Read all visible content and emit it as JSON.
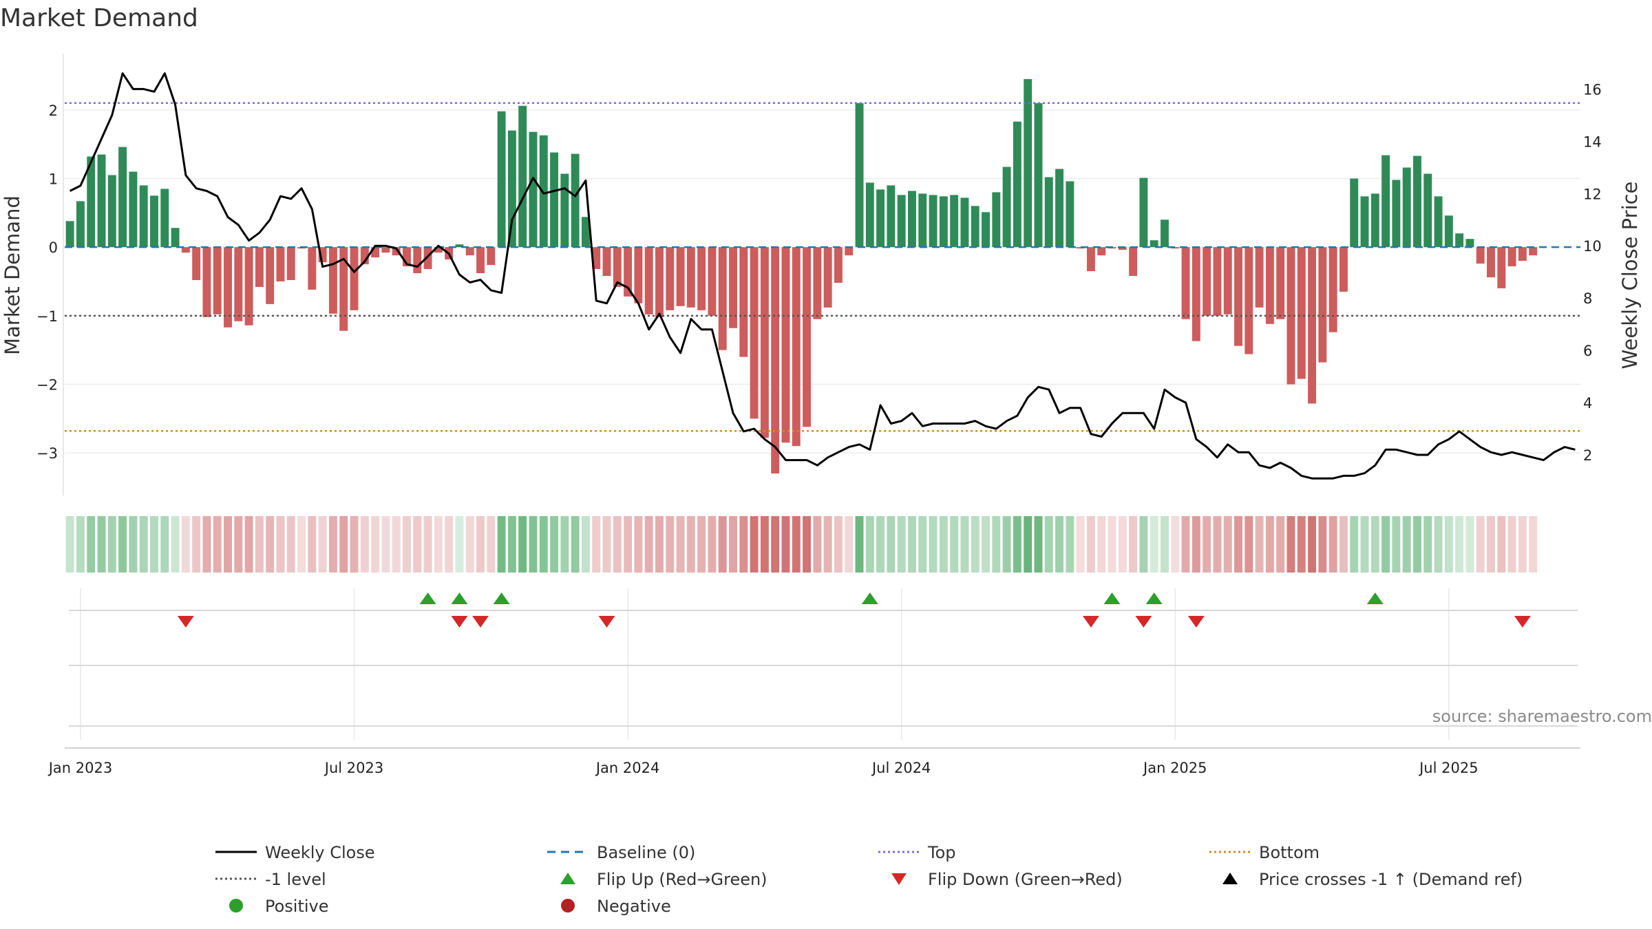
{
  "chart_data": {
    "type": "bar",
    "title": "Market Demand",
    "ylabel": "Market Demand",
    "y2label": "Weekly Close Price",
    "ylim": [
      -3.6,
      2.8
    ],
    "y2lim": [
      0.5,
      17.3
    ],
    "yticks": [
      2,
      1,
      0,
      -1,
      -2,
      -3
    ],
    "yticklabels": [
      "2",
      "1",
      "0",
      "−1",
      "−2",
      "−3"
    ],
    "y2ticks": [
      16,
      14,
      12,
      10,
      8,
      6,
      4,
      2
    ],
    "y2ticklabels": [
      "16",
      "14",
      "12",
      "10",
      "8",
      "6",
      "4",
      "2"
    ],
    "xticks": [
      {
        "week": 1,
        "label": "Jan 2023"
      },
      {
        "week": 27,
        "label": "Jul 2023"
      },
      {
        "week": 53,
        "label": "Jan 2024"
      },
      {
        "week": 79,
        "label": "Jul 2024"
      },
      {
        "week": 105,
        "label": "Jan 2025"
      },
      {
        "week": 131,
        "label": "Jul 2025"
      }
    ],
    "weeks_range": [
      -0.5,
      143.5
    ],
    "reference_lines": {
      "top": 2.1,
      "bottom": -2.68,
      "minus_one": -1,
      "baseline": 0
    },
    "demand": [
      0.38,
      0.67,
      1.32,
      1.35,
      1.05,
      1.46,
      1.1,
      0.9,
      0.75,
      0.85,
      0.28,
      -0.08,
      -0.48,
      -1.02,
      -0.98,
      -1.17,
      -1.08,
      -1.14,
      -0.58,
      -0.83,
      -0.5,
      -0.48,
      -0.02,
      -0.62,
      -0.22,
      -0.97,
      -1.22,
      -0.92,
      -0.25,
      -0.15,
      -0.08,
      -0.12,
      -0.28,
      -0.38,
      -0.32,
      -0.08,
      -0.18,
      0.04,
      -0.12,
      -0.38,
      -0.26,
      1.98,
      1.7,
      2.06,
      1.68,
      1.63,
      1.38,
      1.07,
      1.36,
      0.44,
      -0.32,
      -0.42,
      -0.58,
      -0.72,
      -0.82,
      -0.98,
      -1.02,
      -0.92,
      -0.86,
      -0.88,
      -0.92,
      -1.0,
      -1.5,
      -1.18,
      -1.6,
      -2.5,
      -2.78,
      -3.3,
      -2.85,
      -2.9,
      -2.62,
      -1.05,
      -0.88,
      -0.52,
      -0.12,
      2.1,
      0.94,
      0.84,
      0.9,
      0.76,
      0.82,
      0.78,
      0.76,
      0.74,
      0.76,
      0.72,
      0.6,
      0.51,
      0.8,
      1.17,
      1.83,
      2.45,
      2.1,
      1.02,
      1.14,
      0.96,
      -0.02,
      -0.35,
      -0.12,
      -0.02,
      -0.04,
      -0.42,
      1.01,
      0.1,
      0.4,
      -0.02,
      -1.05,
      -1.37,
      -1.0,
      -1.0,
      -0.98,
      -1.44,
      -1.56,
      -0.88,
      -1.12,
      -1.05,
      -2.0,
      -1.92,
      -2.28,
      -1.68,
      -1.24,
      -0.65,
      1.0,
      0.74,
      0.78,
      1.34,
      0.98,
      1.16,
      1.33,
      1.07,
      0.74,
      0.46,
      0.2,
      0.12,
      -0.24,
      -0.44,
      -0.6,
      -0.28,
      -0.2,
      -0.12
    ],
    "close": [
      [
        0,
        12.1
      ],
      [
        1,
        12.3
      ],
      [
        2,
        13.2
      ],
      [
        3,
        14.1
      ],
      [
        4,
        15.0
      ],
      [
        5,
        16.6
      ],
      [
        6,
        16.0
      ],
      [
        7,
        16.0
      ],
      [
        8,
        15.9
      ],
      [
        9,
        16.6
      ],
      [
        10,
        15.4
      ],
      [
        11,
        12.7
      ],
      [
        12,
        12.2
      ],
      [
        13,
        12.1
      ],
      [
        14,
        11.9
      ],
      [
        15,
        11.1
      ],
      [
        16,
        10.8
      ],
      [
        17,
        10.2
      ],
      [
        18,
        10.5
      ],
      [
        19,
        11.0
      ],
      [
        20,
        11.9
      ],
      [
        21,
        11.8
      ],
      [
        22,
        12.2
      ],
      [
        23,
        11.4
      ],
      [
        24,
        9.2
      ],
      [
        25,
        9.3
      ],
      [
        26,
        9.5
      ],
      [
        27,
        9.0
      ],
      [
        28,
        9.4
      ],
      [
        29,
        10.0
      ],
      [
        30,
        10.0
      ],
      [
        31,
        9.9
      ],
      [
        32,
        9.3
      ],
      [
        33,
        9.2
      ],
      [
        34,
        9.6
      ],
      [
        35,
        10.0
      ],
      [
        36,
        9.7
      ],
      [
        37,
        8.9
      ],
      [
        38,
        8.6
      ],
      [
        39,
        8.7
      ],
      [
        40,
        8.3
      ],
      [
        41,
        8.2
      ],
      [
        42,
        11.0
      ],
      [
        43,
        11.8
      ],
      [
        44,
        12.6
      ],
      [
        45,
        12.0
      ],
      [
        46,
        12.1
      ],
      [
        47,
        12.2
      ],
      [
        48,
        11.9
      ],
      [
        49,
        12.5
      ],
      [
        50,
        7.9
      ],
      [
        51,
        7.8
      ],
      [
        52,
        8.6
      ],
      [
        53,
        8.4
      ],
      [
        54,
        7.8
      ],
      [
        55,
        6.8
      ],
      [
        56,
        7.4
      ],
      [
        57,
        6.5
      ],
      [
        58,
        5.9
      ],
      [
        59,
        7.2
      ],
      [
        60,
        6.8
      ],
      [
        61,
        6.8
      ],
      [
        62,
        5.2
      ],
      [
        63,
        3.6
      ],
      [
        64,
        2.9
      ],
      [
        65,
        3.0
      ],
      [
        66,
        2.6
      ],
      [
        67,
        2.3
      ],
      [
        68,
        1.8
      ],
      [
        69,
        1.8
      ],
      [
        70,
        1.8
      ],
      [
        71,
        1.6
      ],
      [
        72,
        1.9
      ],
      [
        73,
        2.1
      ],
      [
        74,
        2.3
      ],
      [
        75,
        2.4
      ],
      [
        76,
        2.2
      ],
      [
        77,
        3.9
      ],
      [
        78,
        3.2
      ],
      [
        79,
        3.3
      ],
      [
        80,
        3.6
      ],
      [
        81,
        3.1
      ],
      [
        82,
        3.2
      ],
      [
        83,
        3.2
      ],
      [
        84,
        3.2
      ],
      [
        85,
        3.2
      ],
      [
        86,
        3.3
      ],
      [
        87,
        3.1
      ],
      [
        88,
        3.0
      ],
      [
        89,
        3.3
      ],
      [
        90,
        3.5
      ],
      [
        91,
        4.2
      ],
      [
        92,
        4.6
      ],
      [
        93,
        4.5
      ],
      [
        94,
        3.6
      ],
      [
        95,
        3.8
      ],
      [
        96,
        3.8
      ],
      [
        97,
        2.8
      ],
      [
        98,
        2.7
      ],
      [
        99,
        3.2
      ],
      [
        100,
        3.6
      ],
      [
        101,
        3.6
      ],
      [
        102,
        3.6
      ],
      [
        103,
        3.0
      ],
      [
        104,
        4.5
      ],
      [
        105,
        4.2
      ],
      [
        106,
        4.0
      ],
      [
        107,
        2.6
      ],
      [
        108,
        2.3
      ],
      [
        109,
        1.9
      ],
      [
        110,
        2.4
      ],
      [
        111,
        2.1
      ],
      [
        112,
        2.1
      ],
      [
        113,
        1.6
      ],
      [
        114,
        1.5
      ],
      [
        115,
        1.7
      ],
      [
        116,
        1.5
      ],
      [
        117,
        1.2
      ],
      [
        118,
        1.1
      ],
      [
        119,
        1.1
      ],
      [
        120,
        1.1
      ],
      [
        121,
        1.2
      ],
      [
        122,
        1.2
      ],
      [
        123,
        1.3
      ],
      [
        124,
        1.6
      ],
      [
        125,
        2.2
      ],
      [
        126,
        2.2
      ],
      [
        127,
        2.1
      ],
      [
        128,
        2.0
      ],
      [
        129,
        2.0
      ],
      [
        130,
        2.4
      ],
      [
        131,
        2.6
      ],
      [
        132,
        2.9
      ],
      [
        133,
        2.6
      ],
      [
        134,
        2.3
      ],
      [
        135,
        2.1
      ],
      [
        136,
        2.0
      ],
      [
        137,
        2.1
      ],
      [
        138,
        2.0
      ],
      [
        139,
        1.9
      ],
      [
        140,
        1.8
      ],
      [
        141,
        2.1
      ],
      [
        142,
        2.3
      ],
      [
        143,
        2.2
      ]
    ],
    "flip_up_weeks": [
      34,
      37,
      41,
      76,
      99,
      103,
      124
    ],
    "flip_down_weeks": [
      11,
      37,
      39,
      51,
      97,
      102,
      107,
      138
    ],
    "source": "source: sharemaestro.com",
    "legend": [
      {
        "label": "Weekly Close",
        "symbol": "line",
        "color": "#000000"
      },
      {
        "label": "Baseline (0)",
        "symbol": "dash",
        "color": "#1f77b4"
      },
      {
        "label": "Top",
        "symbol": "dot",
        "color": "#7b68ee"
      },
      {
        "label": "Bottom",
        "symbol": "dot",
        "color": "#d98a1c"
      },
      {
        "label": "-1 level",
        "symbol": "dot",
        "color": "#555555"
      },
      {
        "label": "Flip Up (Red→Green)",
        "symbol": "triangle-up",
        "color": "#2ca02c"
      },
      {
        "label": "Flip Down (Green→Red)",
        "symbol": "triangle-down",
        "color": "#d62728"
      },
      {
        "label": "Price crosses -1 ↑ (Demand ref)",
        "symbol": "triangle-up",
        "color": "#000000"
      },
      {
        "label": "Positive",
        "symbol": "circle",
        "color": "#2ca02c"
      },
      {
        "label": "Negative",
        "symbol": "circle",
        "color": "#b22222"
      }
    ],
    "colors": {
      "positive_bar": "#2e8b57",
      "negative_bar": "#cd5c5c",
      "close_line": "#000000",
      "top_line": "#7b68ee",
      "bottom_line": "#d98a1c",
      "minus_one_line": "#555555",
      "baseline": "#1f77b4",
      "flip_up": "#2ca02c",
      "flip_down": "#d62728"
    }
  }
}
